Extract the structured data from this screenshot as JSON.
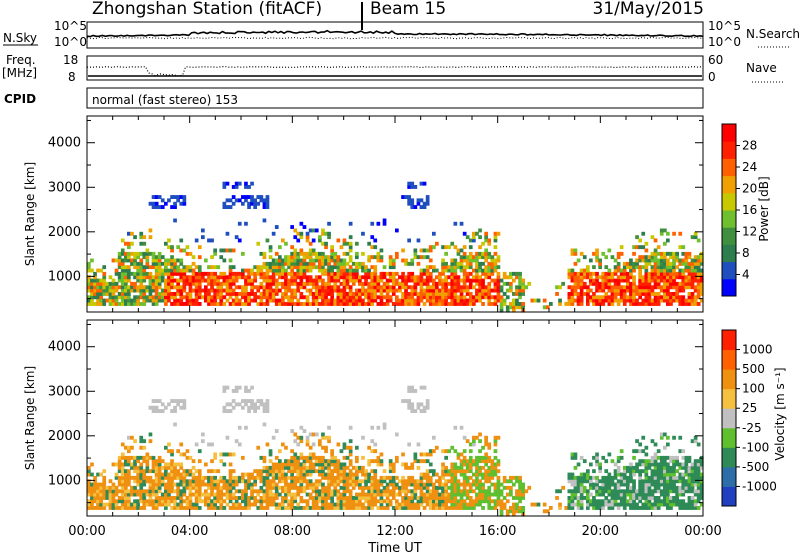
{
  "header": {
    "station": "Zhongshan Station (fitACF)",
    "beam": "Beam 15",
    "date": "31/May/2015"
  },
  "noise_panel": {
    "left_label": "N.Sky",
    "right_label": "N.Search",
    "left_ticks": [
      "10^5",
      "10^0"
    ],
    "right_ticks": [
      "10^5",
      "10^0"
    ]
  },
  "freq_panel": {
    "left_label_1": "Freq.",
    "left_label_2": "[MHz]",
    "right_label": "Nave",
    "left_ticks": [
      "18",
      "8"
    ],
    "right_ticks": [
      "60",
      "0"
    ]
  },
  "cpid": {
    "label": "CPID",
    "mode": "normal (fast stereo) 153"
  },
  "x_axis": {
    "label": "Time UT",
    "ticks": [
      "00:00",
      "04:00",
      "08:00",
      "12:00",
      "16:00",
      "20:00",
      "00:00"
    ]
  },
  "colors": {
    "power_scale": [
      "#0000ff",
      "#1f4fbf",
      "#2e7d4f",
      "#3f8f3f",
      "#6fbf2f",
      "#c8c800",
      "#f0a000",
      "#ff6000",
      "#ff2000",
      "#ff0000"
    ],
    "velocity_scale": [
      "#2040c0",
      "#2e6ea8",
      "#2e8b57",
      "#5fbf2f",
      "#c0c0c0",
      "#f5c040",
      "#f09010",
      "#ff6000",
      "#ff2000"
    ]
  },
  "chart_data": [
    {
      "type": "heatmap",
      "name": "power",
      "xlabel": "Time UT",
      "ylabel": "Slant Range [km]",
      "xlim": [
        0,
        24
      ],
      "ylim": [
        200,
        4600
      ],
      "yticks": [
        "1000",
        "2000",
        "3000",
        "4000"
      ],
      "colorbar": {
        "label": "Power [dB]",
        "ticks": [
          "4",
          "8",
          "12",
          "16",
          "20",
          "24",
          "28"
        ],
        "range": [
          0,
          30
        ]
      }
    },
    {
      "type": "heatmap",
      "name": "velocity",
      "xlabel": "Time UT",
      "ylabel": "Slant Range [km]",
      "xlim": [
        0,
        24
      ],
      "ylim": [
        200,
        4600
      ],
      "yticks": [
        "1000",
        "2000",
        "3000",
        "4000"
      ],
      "colorbar": {
        "label": "Velocity [m s⁻¹]",
        "ticks": [
          "1000",
          "500",
          "100",
          "25",
          "-25",
          "-100",
          "-500",
          "-1000"
        ],
        "range": [
          -1500,
          1500
        ]
      }
    }
  ]
}
